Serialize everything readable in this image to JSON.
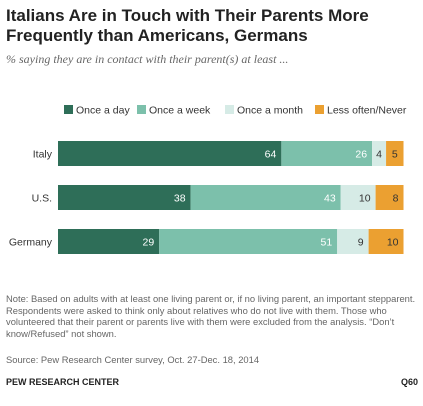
{
  "title": "Italians Are in Touch with Their Parents More Frequently than Americans, Germans",
  "subtitle": "% saying they are in contact with their parent(s) at least ...",
  "note": "Note: Based on adults with at least one living parent or, if no living parent, an important stepparent. Respondents were asked to think only about relatives who do not live with them. Those who volunteered that their parent or parents live with them were excluded from the analysis. “Don’t know/Refused” not shown.",
  "source": "Source: Pew Research Center survey, Oct. 27-Dec. 18, 2014",
  "footer": {
    "org": "PEW RESEARCH CENTER",
    "code": "Q60"
  },
  "chart_data": {
    "type": "bar",
    "orientation": "horizontal",
    "stacked": true,
    "categories": [
      "Italy",
      "U.S.",
      "Germany"
    ],
    "series": [
      {
        "name": "Once a day",
        "values": [
          64,
          38,
          29
        ],
        "color": "#2e6e58",
        "label_color": "#ffffff"
      },
      {
        "name": "Once a week",
        "values": [
          26,
          43,
          51
        ],
        "color": "#7cc0ab",
        "label_color": "#ffffff"
      },
      {
        "name": "Once a month",
        "values": [
          4,
          10,
          9
        ],
        "color": "#d6ebe6",
        "label_color": "#333333"
      },
      {
        "name": "Less often/Never",
        "values": [
          5,
          8,
          10
        ],
        "color": "#eba031",
        "label_color": "#333333"
      }
    ],
    "xlim": [
      0,
      100
    ],
    "legend": "top",
    "grid": false,
    "xlabel": "",
    "ylabel": ""
  }
}
